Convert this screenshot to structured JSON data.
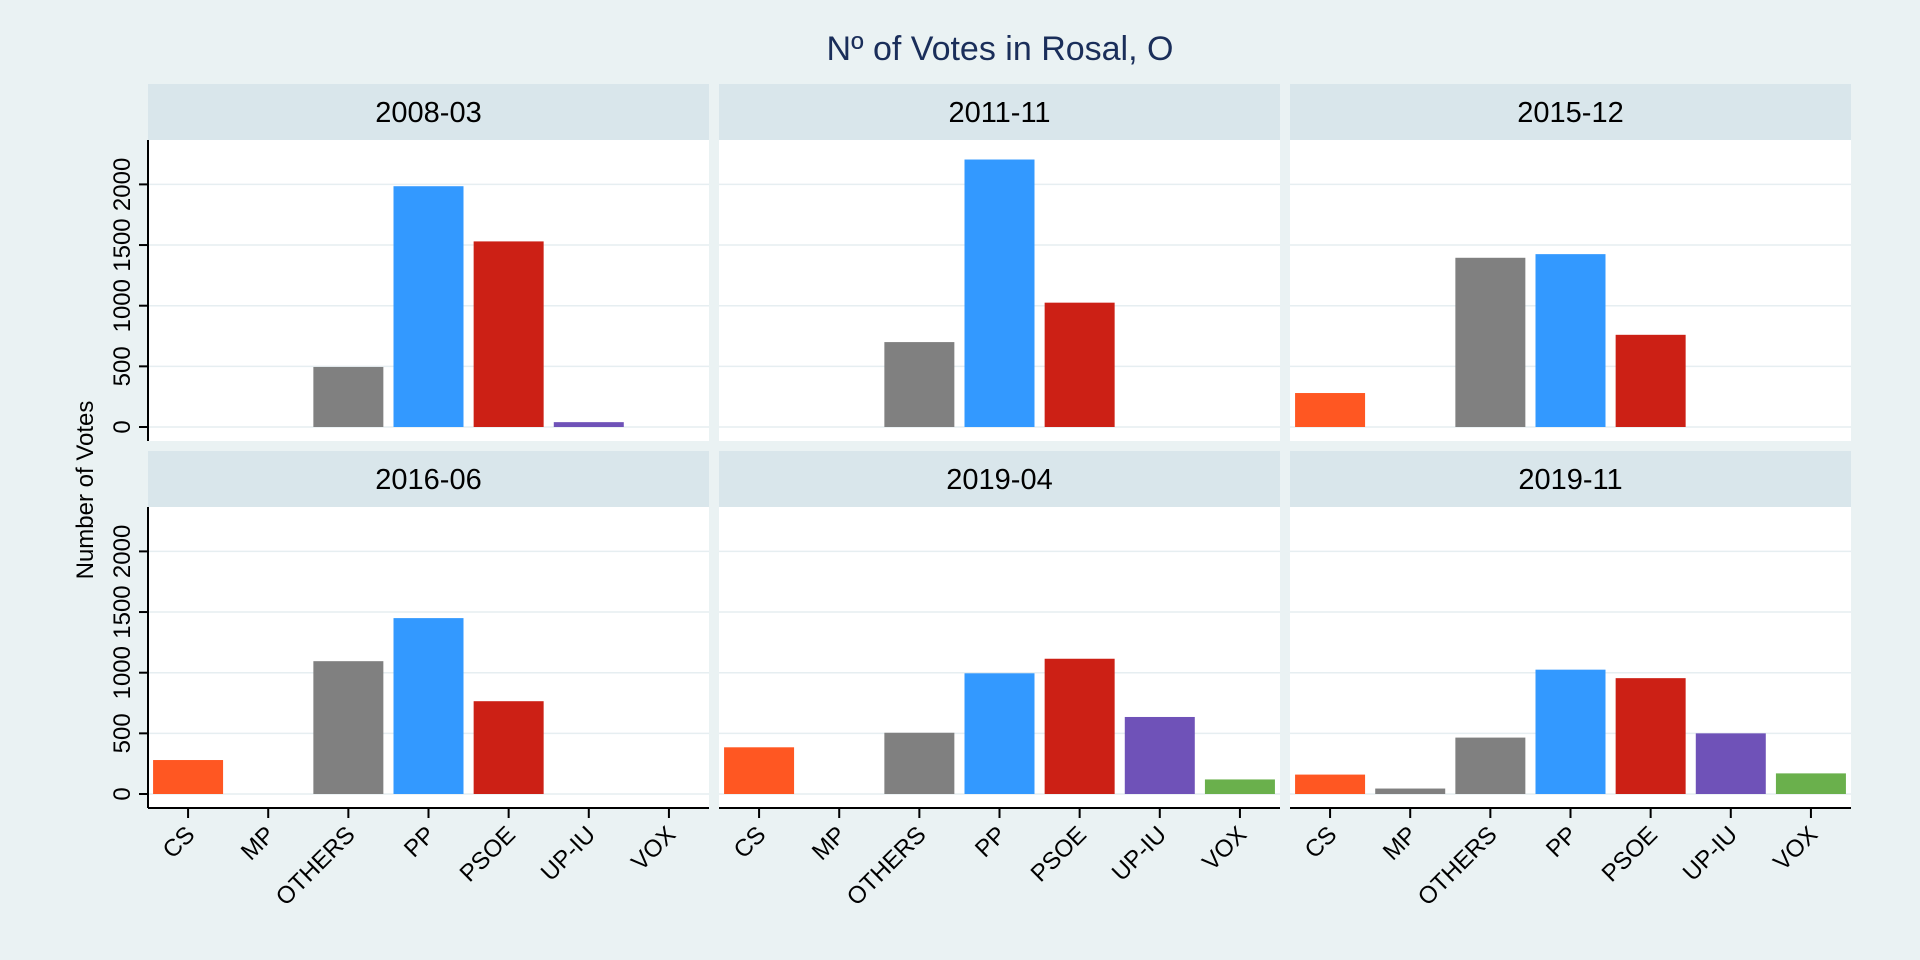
{
  "chart_data": {
    "type": "bar",
    "title": "Nº of Votes in Rosal, O",
    "ylabel": "Number of Votes",
    "xlabel": "",
    "ylim": [
      0,
      2300
    ],
    "yticks": [
      0,
      500,
      1000,
      1500,
      2000
    ],
    "ytick_labels": [
      "0",
      "500",
      "1000",
      "1500",
      "2000"
    ],
    "grid": true,
    "categories": [
      "CS",
      "MP",
      "OTHERS",
      "PP",
      "PSOE",
      "UP-IU",
      "VOX"
    ],
    "colors": {
      "CS": "#ff5722",
      "MP": "#808080",
      "OTHERS": "#808080",
      "PP": "#3399ff",
      "PSOE": "#cc2015",
      "UP-IU": "#6f52b8",
      "VOX": "#6ab04c"
    },
    "panels": [
      {
        "label": "2008-03",
        "values": {
          "OTHERS": 495,
          "PP": 1985,
          "PSOE": 1530,
          "UP-IU": 40
        }
      },
      {
        "label": "2011-11",
        "values": {
          "OTHERS": 700,
          "PP": 2205,
          "PSOE": 1025
        }
      },
      {
        "label": "2015-12",
        "values": {
          "CS": 280,
          "OTHERS": 1395,
          "PP": 1425,
          "PSOE": 760
        }
      },
      {
        "label": "2016-06",
        "values": {
          "CS": 280,
          "OTHERS": 1095,
          "PP": 1450,
          "PSOE": 765
        }
      },
      {
        "label": "2019-04",
        "values": {
          "CS": 385,
          "OTHERS": 505,
          "PP": 995,
          "PSOE": 1115,
          "UP-IU": 635,
          "VOX": 120
        }
      },
      {
        "label": "2019-11",
        "values": {
          "CS": 160,
          "MP": 45,
          "OTHERS": 465,
          "PP": 1025,
          "PSOE": 955,
          "UP-IU": 500,
          "VOX": 170
        }
      }
    ]
  }
}
